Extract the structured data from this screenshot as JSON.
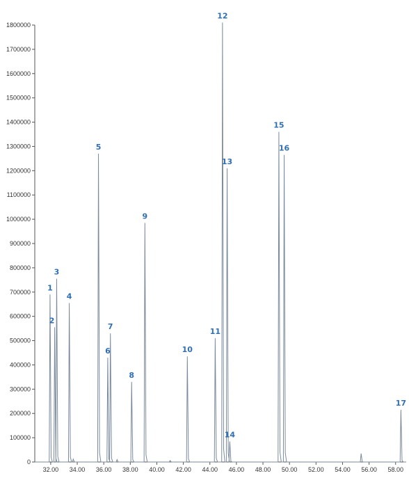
{
  "chart_data": {
    "type": "line",
    "title": "",
    "xlabel": "",
    "ylabel": "",
    "xlim": [
      30.8,
      58.8
    ],
    "ylim": [
      0,
      1800000
    ],
    "grid": false,
    "line_color": "#7a8a9c",
    "label_color": "#2f6fb5",
    "x_ticks": [
      "32.00",
      "34.00",
      "36.00",
      "38.00",
      "40.00",
      "42.00",
      "44.00",
      "46.00",
      "48.00",
      "50.00",
      "52.00",
      "54.00",
      "56.00",
      "58.00"
    ],
    "x_tick_values": [
      32,
      34,
      36,
      38,
      40,
      42,
      44,
      46,
      48,
      50,
      52,
      54,
      56,
      58
    ],
    "y_ticks": [
      "0",
      "100000",
      "200000",
      "300000",
      "400000",
      "500000",
      "600000",
      "700000",
      "800000",
      "900000",
      "1000000",
      "1100000",
      "1200000",
      "1300000",
      "1400000",
      "1500000",
      "1600000",
      "1700000",
      "1800000"
    ],
    "y_tick_values": [
      0,
      100000,
      200000,
      300000,
      400000,
      500000,
      600000,
      700000,
      800000,
      900000,
      1000000,
      1100000,
      1200000,
      1300000,
      1400000,
      1500000,
      1600000,
      1700000,
      1800000
    ],
    "peaks": [
      {
        "label": "1",
        "x": 31.95,
        "y": 690000
      },
      {
        "label": "2",
        "x": 32.3,
        "y": 555000
      },
      {
        "label": "3",
        "x": 32.45,
        "y": 755000
      },
      {
        "label": "4",
        "x": 33.4,
        "y": 655000
      },
      {
        "label": "5",
        "x": 35.6,
        "y": 1270000
      },
      {
        "label": "6",
        "x": 36.3,
        "y": 430000
      },
      {
        "label": "7",
        "x": 36.5,
        "y": 530000
      },
      {
        "label": "8",
        "x": 38.1,
        "y": 330000
      },
      {
        "label": "9",
        "x": 39.1,
        "y": 985000
      },
      {
        "label": "10",
        "x": 42.3,
        "y": 435000
      },
      {
        "label": "11",
        "x": 44.4,
        "y": 510000
      },
      {
        "label": "12",
        "x": 44.95,
        "y": 1810000
      },
      {
        "label": "13",
        "x": 45.3,
        "y": 1210000
      },
      {
        "label": "14",
        "x": 45.5,
        "y": 85000
      },
      {
        "label": "15",
        "x": 49.2,
        "y": 1360000
      },
      {
        "label": "16",
        "x": 49.6,
        "y": 1265000
      },
      {
        "label": "17",
        "x": 58.4,
        "y": 215000
      }
    ],
    "minor_peaks": [
      {
        "x": 33.7,
        "y": 12000
      },
      {
        "x": 37.0,
        "y": 10000
      },
      {
        "x": 41.0,
        "y": 6000
      },
      {
        "x": 55.4,
        "y": 35000
      }
    ]
  }
}
